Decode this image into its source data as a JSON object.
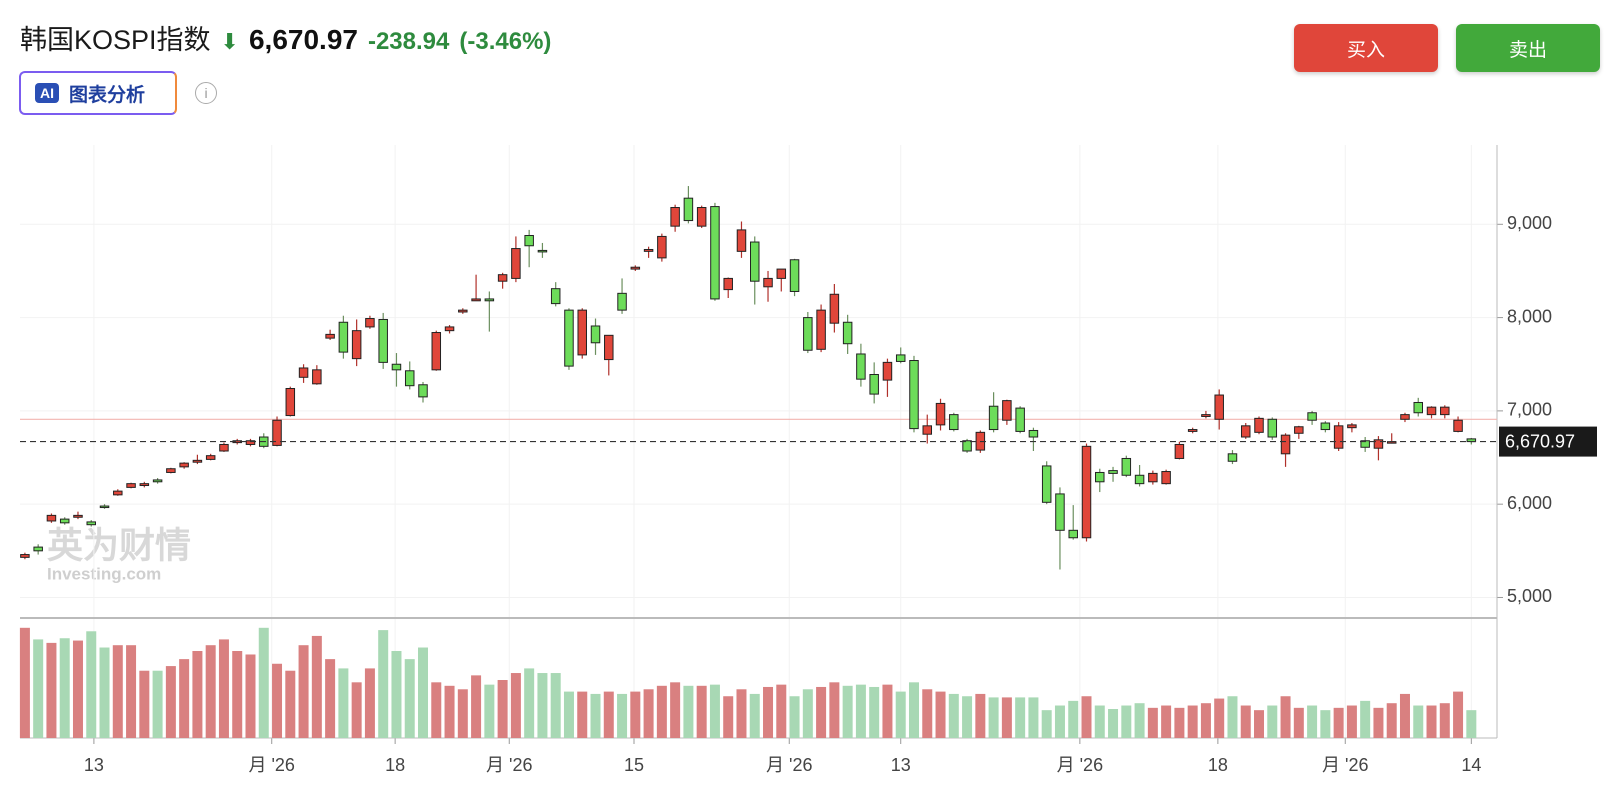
{
  "header": {
    "title": "韩国KOSPI指数",
    "price": "6,670.97",
    "change": "-238.94",
    "change_pct": "(-3.46%)",
    "ai_label": "AI",
    "ai_button": "图表分析",
    "buy": "买入",
    "sell": "卖出",
    "watermark": "英为财情",
    "watermark_sub": "Investing.com"
  },
  "chart_data": {
    "type": "candlestick",
    "up_color": "#e0463a",
    "down_color": "#6ddc5a",
    "up_volume_color": "#d98080",
    "down_volume_color": "#a8d8b4",
    "ohlc": [
      [
        5430,
        5480,
        5410,
        5460
      ],
      [
        5540,
        5570,
        5460,
        5500
      ],
      [
        5820,
        5900,
        5800,
        5880
      ],
      [
        5840,
        5860,
        5780,
        5800
      ],
      [
        5860,
        5920,
        5840,
        5880
      ],
      [
        5810,
        5830,
        5760,
        5780
      ],
      [
        5980,
        6000,
        5950,
        5970
      ],
      [
        6100,
        6160,
        6090,
        6140
      ],
      [
        6180,
        6230,
        6170,
        6220
      ],
      [
        6200,
        6240,
        6180,
        6220
      ],
      [
        6260,
        6280,
        6220,
        6240
      ],
      [
        6340,
        6390,
        6330,
        6380
      ],
      [
        6400,
        6450,
        6380,
        6440
      ],
      [
        6450,
        6530,
        6430,
        6470
      ],
      [
        6480,
        6540,
        6470,
        6520
      ],
      [
        6570,
        6660,
        6560,
        6640
      ],
      [
        6660,
        6700,
        6640,
        6680
      ],
      [
        6640,
        6700,
        6620,
        6680
      ],
      [
        6720,
        6760,
        6600,
        6620
      ],
      [
        6630,
        6940,
        6620,
        6900
      ],
      [
        6950,
        7260,
        6940,
        7240
      ],
      [
        7360,
        7500,
        7300,
        7460
      ],
      [
        7290,
        7490,
        7280,
        7440
      ],
      [
        7780,
        7870,
        7760,
        7820
      ],
      [
        7950,
        8020,
        7560,
        7630
      ],
      [
        7560,
        7980,
        7480,
        7860
      ],
      [
        7900,
        8020,
        7880,
        7990
      ],
      [
        7980,
        8050,
        7450,
        7520
      ],
      [
        7500,
        7620,
        7260,
        7440
      ],
      [
        7430,
        7530,
        7230,
        7270
      ],
      [
        7280,
        7310,
        7090,
        7150
      ],
      [
        7440,
        7860,
        7430,
        7840
      ],
      [
        7860,
        7920,
        7830,
        7900
      ],
      [
        8060,
        8100,
        8040,
        8080
      ],
      [
        8180,
        8460,
        8180,
        8200
      ],
      [
        8200,
        8280,
        7850,
        8180
      ],
      [
        8390,
        8480,
        8310,
        8460
      ],
      [
        8420,
        8870,
        8380,
        8740
      ],
      [
        8880,
        8940,
        8540,
        8770
      ],
      [
        8720,
        8800,
        8640,
        8710
      ],
      [
        8310,
        8380,
        8120,
        8150
      ],
      [
        8080,
        8100,
        7440,
        7480
      ],
      [
        7600,
        8100,
        7560,
        8080
      ],
      [
        7910,
        7990,
        7600,
        7730
      ],
      [
        7550,
        7810,
        7380,
        7810
      ],
      [
        8260,
        8420,
        8040,
        8080
      ],
      [
        8520,
        8560,
        8500,
        8540
      ],
      [
        8710,
        8760,
        8640,
        8730
      ],
      [
        8640,
        8900,
        8600,
        8870
      ],
      [
        8980,
        9210,
        8920,
        9180
      ],
      [
        9280,
        9410,
        9010,
        9040
      ],
      [
        8980,
        9200,
        8960,
        9180
      ],
      [
        9190,
        9230,
        8180,
        8200
      ],
      [
        8300,
        8430,
        8210,
        8420
      ],
      [
        8710,
        9030,
        8640,
        8940
      ],
      [
        8810,
        8870,
        8140,
        8390
      ],
      [
        8330,
        8500,
        8170,
        8420
      ],
      [
        8420,
        8520,
        8280,
        8520
      ],
      [
        8620,
        8630,
        8230,
        8280
      ],
      [
        8000,
        8060,
        7620,
        7650
      ],
      [
        7660,
        8140,
        7630,
        8080
      ],
      [
        7940,
        8360,
        7840,
        8250
      ],
      [
        7950,
        8030,
        7610,
        7720
      ],
      [
        7610,
        7720,
        7260,
        7340
      ],
      [
        7390,
        7520,
        7080,
        7180
      ],
      [
        7330,
        7560,
        7150,
        7520
      ],
      [
        7600,
        7680,
        7510,
        7530
      ],
      [
        7540,
        7590,
        6770,
        6810
      ],
      [
        6750,
        6960,
        6650,
        6840
      ],
      [
        6850,
        7130,
        6790,
        7080
      ],
      [
        6960,
        6980,
        6780,
        6800
      ],
      [
        6680,
        6700,
        6550,
        6570
      ],
      [
        6580,
        6790,
        6550,
        6770
      ],
      [
        7050,
        7200,
        6770,
        6800
      ],
      [
        6900,
        7120,
        6850,
        7110
      ],
      [
        7030,
        7050,
        6760,
        6780
      ],
      [
        6790,
        6820,
        6570,
        6720
      ],
      [
        6410,
        6460,
        6000,
        6020
      ],
      [
        6110,
        6180,
        5300,
        5720
      ],
      [
        5720,
        5990,
        5620,
        5640
      ],
      [
        5640,
        6650,
        5600,
        6620
      ],
      [
        6340,
        6380,
        6130,
        6240
      ],
      [
        6360,
        6400,
        6240,
        6330
      ],
      [
        6490,
        6520,
        6290,
        6310
      ],
      [
        6310,
        6420,
        6190,
        6220
      ],
      [
        6240,
        6360,
        6210,
        6330
      ],
      [
        6220,
        6370,
        6210,
        6350
      ],
      [
        6490,
        6670,
        6480,
        6640
      ],
      [
        6780,
        6820,
        6760,
        6800
      ],
      [
        6940,
        7000,
        6920,
        6960
      ],
      [
        6910,
        7230,
        6800,
        7170
      ],
      [
        6540,
        6580,
        6430,
        6460
      ],
      [
        6720,
        6870,
        6700,
        6840
      ],
      [
        6770,
        6940,
        6750,
        6920
      ],
      [
        6910,
        6930,
        6690,
        6720
      ],
      [
        6540,
        6760,
        6400,
        6740
      ],
      [
        6760,
        6840,
        6700,
        6830
      ],
      [
        6980,
        7000,
        6850,
        6900
      ],
      [
        6870,
        6890,
        6770,
        6800
      ],
      [
        6600,
        6880,
        6570,
        6840
      ],
      [
        6820,
        6870,
        6770,
        6850
      ],
      [
        6680,
        6720,
        6560,
        6610
      ],
      [
        6600,
        6730,
        6470,
        6690
      ],
      [
        6660,
        6760,
        6650,
        6670
      ],
      [
        6910,
        6980,
        6880,
        6960
      ],
      [
        7090,
        7140,
        6940,
        6980
      ],
      [
        6960,
        7050,
        6920,
        7040
      ],
      [
        6960,
        7060,
        6920,
        7040
      ],
      [
        6780,
        6940,
        6770,
        6900
      ],
      [
        6700,
        6710,
        6640,
        6670.97
      ]
    ],
    "volume": [
      95,
      85,
      82,
      86,
      84,
      92,
      78,
      80,
      80,
      58,
      58,
      62,
      68,
      75,
      80,
      85,
      75,
      72,
      95,
      64,
      58,
      80,
      88,
      68,
      60,
      48,
      60,
      93,
      75,
      68,
      78,
      48,
      45,
      42,
      54,
      46,
      50,
      56,
      60,
      56,
      56,
      40,
      40,
      38,
      40,
      38,
      40,
      42,
      45,
      48,
      45,
      45,
      46,
      36,
      42,
      38,
      44,
      46,
      36,
      42,
      44,
      48,
      45,
      46,
      44,
      46,
      40,
      48,
      42,
      40,
      38,
      36,
      38,
      35,
      35,
      35,
      35,
      24,
      28,
      32,
      36,
      28,
      25,
      28,
      30,
      26,
      28,
      26,
      28,
      30,
      34,
      36,
      28,
      24,
      28,
      36,
      26,
      28,
      24,
      26,
      28,
      32,
      26,
      30,
      38,
      28,
      28,
      30,
      40,
      24
    ],
    "volume_ylim": [
      0,
      100
    ],
    "ylim": [
      4780,
      9850
    ],
    "yticks": [
      {
        "value": 5000,
        "label": "5,000"
      },
      {
        "value": 6000,
        "label": "6,000"
      },
      {
        "value": 7000,
        "label": "7,000"
      },
      {
        "value": 8000,
        "label": "8,000"
      },
      {
        "value": 9000,
        "label": "9,000"
      }
    ],
    "xlim": [
      0,
      109
    ],
    "xticks": [
      {
        "value": 5.2,
        "label": "13"
      },
      {
        "value": 18.6,
        "label": "月 '26"
      },
      {
        "value": 27.9,
        "label": "18"
      },
      {
        "value": 36.5,
        "label": "月 '26"
      },
      {
        "value": 45.9,
        "label": "15"
      },
      {
        "value": 57.6,
        "label": "月 '26"
      },
      {
        "value": 66,
        "label": "13"
      },
      {
        "value": 79.5,
        "label": "月 '26"
      },
      {
        "value": 89.9,
        "label": "18"
      },
      {
        "value": 99.5,
        "label": "月 '26"
      },
      {
        "value": 109,
        "label": "14"
      }
    ],
    "reference_line": 6909.91,
    "last_price_label": "6,670.97",
    "grid": true
  }
}
